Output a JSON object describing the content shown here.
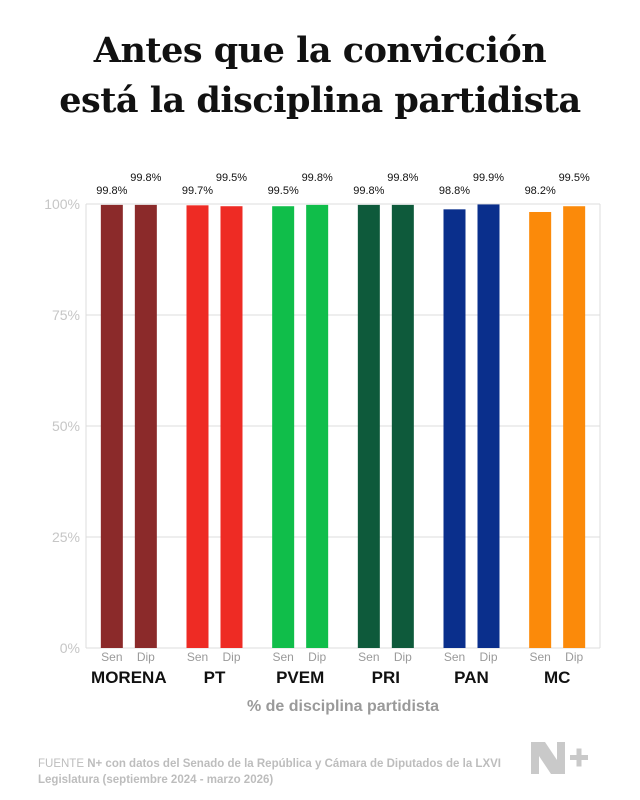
{
  "title_lines": [
    "Antes que la convicción",
    "está la disciplina partidista"
  ],
  "source": {
    "label": "FUENTE",
    "text": "N+ con datos del Senado de la República y Cámara de Diputados de la LXVI Legislatura (septiembre 2024 - marzo 2026)"
  },
  "logo_text": "N+",
  "chart_data": {
    "type": "bar",
    "xlabel": "% de disciplina partidista",
    "ylim": [
      0,
      100
    ],
    "yticks": [
      "0%",
      "25%",
      "50%",
      "75%",
      "100%"
    ],
    "grid": true,
    "sub_categories": [
      "Sen",
      "Dip"
    ],
    "groups": [
      {
        "party": "MORENA",
        "color": "#8b2a2a",
        "values": [
          99.8,
          99.8
        ],
        "labels": [
          "99.8%",
          "99.8%"
        ]
      },
      {
        "party": "PT",
        "color": "#ee2b24",
        "values": [
          99.7,
          99.5
        ],
        "labels": [
          "99.7%",
          "99.5%"
        ]
      },
      {
        "party": "PVEM",
        "color": "#10be4a",
        "values": [
          99.5,
          99.8
        ],
        "labels": [
          "99.5%",
          "99.8%"
        ]
      },
      {
        "party": "PRI",
        "color": "#0e5a3b",
        "values": [
          99.8,
          99.8
        ],
        "labels": [
          "99.8%",
          "99.8%"
        ]
      },
      {
        "party": "PAN",
        "color": "#0a2f8c",
        "values": [
          98.8,
          99.9
        ],
        "labels": [
          "98.8%",
          "99.9%"
        ]
      },
      {
        "party": "MC",
        "color": "#fb8a0a",
        "values": [
          98.2,
          99.5
        ],
        "labels": [
          "98.2%",
          "99.5%"
        ]
      }
    ]
  }
}
